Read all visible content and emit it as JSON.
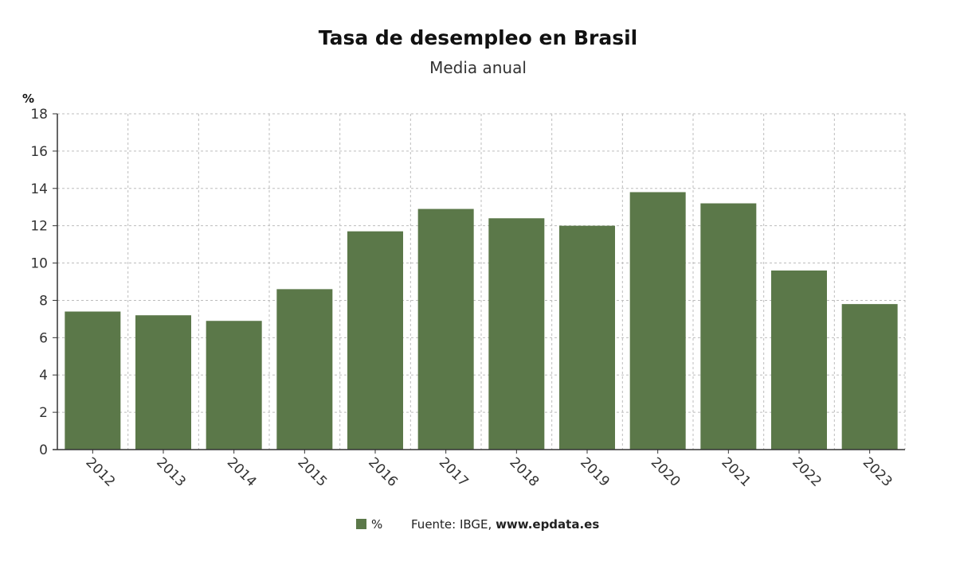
{
  "chart_data": {
    "type": "bar",
    "title": "Tasa de desempleo en Brasil",
    "subtitle": "Media anual",
    "ylabel": "%",
    "ylim": [
      0,
      18
    ],
    "yticks": [
      0,
      2,
      4,
      6,
      8,
      10,
      12,
      14,
      16,
      18
    ],
    "grid": true,
    "categories": [
      "2012",
      "2013",
      "2014",
      "2015",
      "2016",
      "2017",
      "2018",
      "2019",
      "2020",
      "2021",
      "2022",
      "2023"
    ],
    "series": [
      {
        "name": "%",
        "values": [
          7.4,
          7.2,
          6.9,
          8.6,
          11.7,
          12.9,
          12.4,
          12.0,
          13.8,
          13.2,
          9.6,
          7.8
        ],
        "color": "#5b7849"
      }
    ],
    "legend_position": "bottom",
    "source_prefix": "Fuente: IBGE, ",
    "source_site": "www.epdata.es"
  }
}
